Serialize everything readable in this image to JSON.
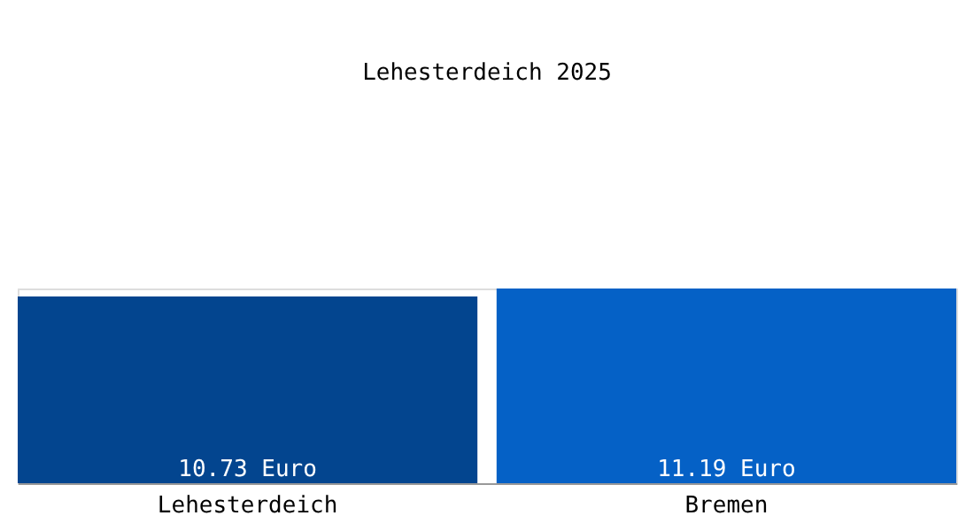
{
  "chart_data": {
    "type": "bar",
    "title": "Lehesterdeich 2025",
    "categories": [
      "Lehesterdeich",
      "Bremen"
    ],
    "values": [
      10.73,
      11.19
    ],
    "colors": [
      "#03458f",
      "#0561c6"
    ],
    "value_labels": [
      "10.73 Euro",
      "11.19 Euro"
    ]
  }
}
